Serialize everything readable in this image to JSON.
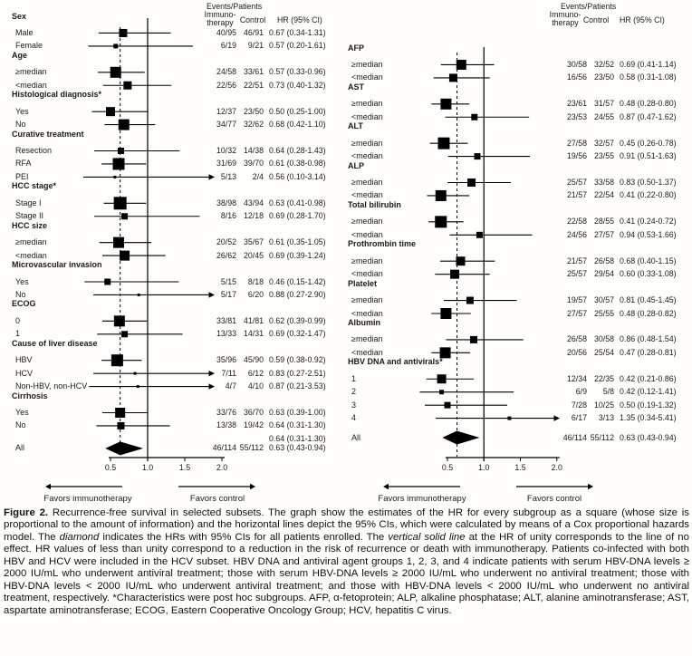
{
  "chart_data": {
    "type": "forest",
    "title": "Figure 2. Recurrence-free survival in selected subsets",
    "hr_axis": {
      "ticks": [
        "0.5",
        "1.0",
        "1.5",
        "2.0"
      ],
      "tick_values": [
        0.5,
        1.0,
        1.5,
        2.0
      ],
      "overall_hr": 0.63,
      "unity": 1.0
    },
    "column_headers": {
      "events_patients": "Events/Patients",
      "immuno_line1": "Immuno-",
      "immuno_line2": "therapy",
      "control": "Control",
      "hr": "HR (95% CI)"
    },
    "favors": {
      "left_label": "Favors immunotherapy",
      "right_label": "Favors control"
    },
    "panels": [
      {
        "rows": [
          {
            "kind": "section",
            "label": "Sex"
          },
          {
            "kind": "item",
            "label": "Male",
            "immuno": "40/95",
            "control": "46/91",
            "hr_text": "0.67 (0.34-1.31)",
            "hr": 0.67,
            "lo": 0.34,
            "hi": 1.31,
            "size": 9
          },
          {
            "kind": "item",
            "label": "Female",
            "immuno": "6/19",
            "control": "9/21",
            "hr_text": "0.57 (0.20-1.61)",
            "hr": 0.57,
            "lo": 0.2,
            "hi": 1.61,
            "size": 5
          },
          {
            "kind": "section",
            "label": "Age"
          },
          {
            "kind": "item",
            "label": "≥median",
            "immuno": "24/58",
            "control": "33/61",
            "hr_text": "0.57 (0.33-0.96)",
            "hr": 0.57,
            "lo": 0.33,
            "hi": 0.96,
            "size": 12
          },
          {
            "kind": "item",
            "label": "<median",
            "immuno": "22/56",
            "control": "22/51",
            "hr_text": "0.73 (0.40-1.32)",
            "hr": 0.73,
            "lo": 0.4,
            "hi": 1.32,
            "size": 9
          },
          {
            "kind": "section",
            "label": "Histological diagnosis*"
          },
          {
            "kind": "item",
            "label": "Yes",
            "immuno": "12/37",
            "control": "23/50",
            "hr_text": "0.50 (0.25-1.00)",
            "hr": 0.5,
            "lo": 0.25,
            "hi": 1.0,
            "size": 10
          },
          {
            "kind": "item",
            "label": "No",
            "immuno": "34/77",
            "control": "32/62",
            "hr_text": "0.68 (0.42-1.10)",
            "hr": 0.68,
            "lo": 0.42,
            "hi": 1.1,
            "size": 12
          },
          {
            "kind": "section",
            "label": "Curative treatment"
          },
          {
            "kind": "item",
            "label": "Resection",
            "immuno": "10/32",
            "control": "14/38",
            "hr_text": "0.64 (0.28-1.43)",
            "hr": 0.64,
            "lo": 0.28,
            "hi": 1.43,
            "size": 7
          },
          {
            "kind": "item",
            "label": "RFA",
            "immuno": "31/69",
            "control": "39/70",
            "hr_text": "0.61 (0.38-0.98)",
            "hr": 0.61,
            "lo": 0.38,
            "hi": 0.98,
            "size": 13
          },
          {
            "kind": "item",
            "label": "PEI",
            "immuno": "5/13",
            "control": "2/4",
            "hr_text": "0.56 (0.10-3.14)",
            "hr": 0.56,
            "lo": 0.1,
            "hi": 3.14,
            "size": 3,
            "arrow": true
          },
          {
            "kind": "section",
            "label": "HCC stage*"
          },
          {
            "kind": "item",
            "label": "Stage I",
            "immuno": "38/98",
            "control": "43/94",
            "hr_text": "0.63 (0.41-0.98)",
            "hr": 0.63,
            "lo": 0.41,
            "hi": 0.98,
            "size": 14
          },
          {
            "kind": "item",
            "label": "Stage II",
            "immuno": "8/16",
            "control": "12/18",
            "hr_text": "0.69 (0.28-1.70)",
            "hr": 0.69,
            "lo": 0.28,
            "hi": 1.7,
            "size": 7
          },
          {
            "kind": "section",
            "label": "HCC size"
          },
          {
            "kind": "item",
            "label": "≥median",
            "immuno": "20/52",
            "control": "35/67",
            "hr_text": "0.61 (0.35-1.05)",
            "hr": 0.61,
            "lo": 0.35,
            "hi": 1.05,
            "size": 12
          },
          {
            "kind": "item",
            "label": "<median",
            "immuno": "26/62",
            "control": "20/45",
            "hr_text": "0.69 (0.39-1.24)",
            "hr": 0.69,
            "lo": 0.39,
            "hi": 1.24,
            "size": 11
          },
          {
            "kind": "section",
            "label": "Microvascular invasion"
          },
          {
            "kind": "item",
            "label": "Yes",
            "immuno": "5/15",
            "control": "8/18",
            "hr_text": "0.46 (0.15-1.42)",
            "hr": 0.46,
            "lo": 0.15,
            "hi": 1.42,
            "size": 7
          },
          {
            "kind": "item",
            "label": "No",
            "immuno": "5/17",
            "control": "6/20",
            "hr_text": "0.88 (0.27-2.90)",
            "hr": 0.88,
            "lo": 0.27,
            "hi": 2.9,
            "size": 3,
            "arrow": true
          },
          {
            "kind": "section",
            "label": "ECOG"
          },
          {
            "kind": "item",
            "label": "0",
            "immuno": "33/81",
            "control": "41/81",
            "hr_text": "0.62 (0.39-0.99)",
            "hr": 0.62,
            "lo": 0.39,
            "hi": 0.99,
            "size": 12
          },
          {
            "kind": "item",
            "label": "1",
            "immuno": "13/33",
            "control": "14/31",
            "hr_text": "0.69 (0.32-1.47)",
            "hr": 0.69,
            "lo": 0.32,
            "hi": 1.47,
            "size": 7
          },
          {
            "kind": "section",
            "label": "Cause of liver disease"
          },
          {
            "kind": "item",
            "label": "HBV",
            "immuno": "35/96",
            "control": "45/90",
            "hr_text": "0.59 (0.38-0.92)",
            "hr": 0.59,
            "lo": 0.38,
            "hi": 0.92,
            "size": 13
          },
          {
            "kind": "item",
            "label": "HCV",
            "immuno": "7/11",
            "control": "6/12",
            "hr_text": "0.83 (0.27-2.51)",
            "hr": 0.83,
            "lo": 0.27,
            "hi": 2.51,
            "size": 3,
            "arrow": true
          },
          {
            "kind": "item",
            "label": "Non-HBV, non-HCV",
            "immuno": "4/7",
            "control": "4/10",
            "hr_text": "0.87 (0.21-3.53)",
            "hr": 0.87,
            "lo": 0.21,
            "hi": 3.53,
            "size": 3,
            "arrow": true
          },
          {
            "kind": "section",
            "label": "Cirrhosis"
          },
          {
            "kind": "item",
            "label": "Yes",
            "immuno": "33/76",
            "control": "36/70",
            "hr_text": "0.63 (0.39-1.00)",
            "hr": 0.63,
            "lo": 0.39,
            "hi": 1.0,
            "size": 11
          },
          {
            "kind": "item",
            "label": "No",
            "immuno": "13/38",
            "control": "19/42",
            "hr_text": "0.64 (0.31-1.30)",
            "hr": 0.64,
            "lo": 0.31,
            "hi": 1.3,
            "size": 8
          },
          {
            "kind": "hr_only",
            "hr_text": "0.64 (0.31-1.30)"
          },
          {
            "kind": "all",
            "label": "All",
            "immuno": "46/114",
            "control": "55/112",
            "hr_text": "0.63 (0.43-0.94)",
            "hr": 0.63,
            "lo": 0.43,
            "hi": 0.94
          }
        ]
      },
      {
        "rows": [
          {
            "kind": "section",
            "label": "AFP"
          },
          {
            "kind": "item",
            "label": "≥median",
            "immuno": "30/58",
            "control": "32/52",
            "hr_text": "0.69 (0.41-1.14)",
            "hr": 0.69,
            "lo": 0.41,
            "hi": 1.14,
            "size": 11
          },
          {
            "kind": "item",
            "label": "<median",
            "immuno": "16/56",
            "control": "23/50",
            "hr_text": "0.58 (0.31-1.08)",
            "hr": 0.58,
            "lo": 0.31,
            "hi": 1.08,
            "size": 9
          },
          {
            "kind": "section",
            "label": "AST"
          },
          {
            "kind": "item",
            "label": "≥median",
            "immuno": "23/61",
            "control": "31/57",
            "hr_text": "0.48 (0.28-0.80)",
            "hr": 0.48,
            "lo": 0.28,
            "hi": 0.8,
            "size": 12
          },
          {
            "kind": "item",
            "label": "<median",
            "immuno": "23/53",
            "control": "24/55",
            "hr_text": "0.87 (0.47-1.62)",
            "hr": 0.87,
            "lo": 0.47,
            "hi": 1.62,
            "size": 7
          },
          {
            "kind": "section",
            "label": "ALT"
          },
          {
            "kind": "item",
            "label": "≥median",
            "immuno": "27/58",
            "control": "32/57",
            "hr_text": "0.45 (0.26-0.78)",
            "hr": 0.45,
            "lo": 0.26,
            "hi": 0.78,
            "size": 13
          },
          {
            "kind": "item",
            "label": "<median",
            "immuno": "19/56",
            "control": "23/55",
            "hr_text": "0.91 (0.51-1.63)",
            "hr": 0.91,
            "lo": 0.51,
            "hi": 1.63,
            "size": 7
          },
          {
            "kind": "section",
            "label": "ALP"
          },
          {
            "kind": "item",
            "label": "≥median",
            "immuno": "25/57",
            "control": "33/58",
            "hr_text": "0.83 (0.50-1.37)",
            "hr": 0.83,
            "lo": 0.5,
            "hi": 1.37,
            "size": 9
          },
          {
            "kind": "item",
            "label": "<median",
            "immuno": "21/57",
            "control": "22/54",
            "hr_text": "0.41 (0.22-0.80)",
            "hr": 0.41,
            "lo": 0.22,
            "hi": 0.8,
            "size": 12
          },
          {
            "kind": "section",
            "label": "Total bilirubin"
          },
          {
            "kind": "item",
            "label": "≥median",
            "immuno": "22/58",
            "control": "28/55",
            "hr_text": "0.41 (0.24-0.72)",
            "hr": 0.41,
            "lo": 0.24,
            "hi": 0.72,
            "size": 13
          },
          {
            "kind": "item",
            "label": "<median",
            "immuno": "24/56",
            "control": "27/57",
            "hr_text": "0.94 (0.53-1.66)",
            "hr": 0.94,
            "lo": 0.53,
            "hi": 1.66,
            "size": 7
          },
          {
            "kind": "section",
            "label": "Prothrombin time"
          },
          {
            "kind": "item",
            "label": "≥median",
            "immuno": "21/57",
            "control": "26/58",
            "hr_text": "0.68 (0.40-1.15)",
            "hr": 0.68,
            "lo": 0.4,
            "hi": 1.15,
            "size": 10
          },
          {
            "kind": "item",
            "label": "<median",
            "immuno": "25/57",
            "control": "29/54",
            "hr_text": "0.60 (0.33-1.08)",
            "hr": 0.6,
            "lo": 0.33,
            "hi": 1.08,
            "size": 10
          },
          {
            "kind": "section",
            "label": "Platelet"
          },
          {
            "kind": "item",
            "label": "≥median",
            "immuno": "19/57",
            "control": "30/57",
            "hr_text": "0.81 (0.45-1.45)",
            "hr": 0.81,
            "lo": 0.45,
            "hi": 1.45,
            "size": 8
          },
          {
            "kind": "item",
            "label": "<median",
            "immuno": "27/57",
            "control": "25/55",
            "hr_text": "0.48 (0.28-0.82)",
            "hr": 0.48,
            "lo": 0.28,
            "hi": 0.82,
            "size": 12
          },
          {
            "kind": "section",
            "label": "Albumin"
          },
          {
            "kind": "item",
            "label": "≥median",
            "immuno": "26/58",
            "control": "30/58",
            "hr_text": "0.86 (0.48-1.54)",
            "hr": 0.86,
            "lo": 0.48,
            "hi": 1.54,
            "size": 8
          },
          {
            "kind": "item",
            "label": "<median",
            "immuno": "20/56",
            "control": "25/54",
            "hr_text": "0.47 (0.28-0.81)",
            "hr": 0.47,
            "lo": 0.28,
            "hi": 0.81,
            "size": 12
          },
          {
            "kind": "section",
            "label": "HBV DNA and antivirals*"
          },
          {
            "kind": "item",
            "label": "1",
            "immuno": "12/34",
            "control": "22/35",
            "hr_text": "0.42 (0.21-0.86)",
            "hr": 0.42,
            "lo": 0.21,
            "hi": 0.86,
            "size": 10
          },
          {
            "kind": "item",
            "label": "2",
            "immuno": "6/9",
            "control": "5/8",
            "hr_text": "0.42 (0.12-1.41)",
            "hr": 0.42,
            "lo": 0.12,
            "hi": 1.41,
            "size": 5
          },
          {
            "kind": "item",
            "label": "3",
            "immuno": "7/28",
            "control": "10/25",
            "hr_text": "0.50 (0.19-1.32)",
            "hr": 0.5,
            "lo": 0.19,
            "hi": 1.32,
            "size": 7
          },
          {
            "kind": "item",
            "label": "4",
            "immuno": "6/17",
            "control": "3/13",
            "hr_text": "1.35 (0.34-5.41)",
            "hr": 1.35,
            "lo": 0.34,
            "hi": 5.41,
            "size": 4,
            "arrow": true
          },
          {
            "kind": "all",
            "label": "All",
            "immuno": "46/114",
            "control": "55/112",
            "hr_text": "0.63 (0.43-0.94)",
            "hr": 0.63,
            "lo": 0.43,
            "hi": 0.94
          }
        ]
      }
    ]
  },
  "caption": {
    "segments": [
      {
        "text": "Figure 2.",
        "bold": true
      },
      {
        "text": " Recurrence-free survival in selected subsets. The graph show the estimates of the HR for every subgroup as a square (whose size is proportional to the amount of information) and the horizontal lines depict the 95% CIs, which were calculated by means of a Cox proportional hazards model. The "
      },
      {
        "text": "diamond",
        "italic": true
      },
      {
        "text": " indicates the HRs with 95% CIs for all patients enrolled. The "
      },
      {
        "text": "vertical solid line",
        "italic": true
      },
      {
        "text": " at the HR of unity corresponds to the line of no effect. HR values of less than unity correspond to a reduction in the risk of recurrence or death with immunotherapy. Patients co-infected with both HBV and HCV were included in the HCV subset. HBV DNA and antiviral agent groups 1, 2, 3, and 4 indicate patients with serum HBV-DNA levels ≥ 2000 IU/mL who underwent antiviral treatment; those with serum HBV-DNA levels ≥ 2000 IU/mL who underwent no antiviral treatment; those with HBV-DNA levels < 2000 IU/mL who underwent antiviral treatment; and those with HBV-DNA levels < 2000 IU/mL who underwent no antiviral treatment, respectively. *Characteristics were post hoc subgroups. AFP, α-fetoprotein; ALP, alkaline phosphatase; ALT, alanine aminotransferase; AST, aspartate aminotransferase; ECOG, Eastern Cooperative Oncology Group; HCV, hepatitis C virus."
      }
    ]
  }
}
